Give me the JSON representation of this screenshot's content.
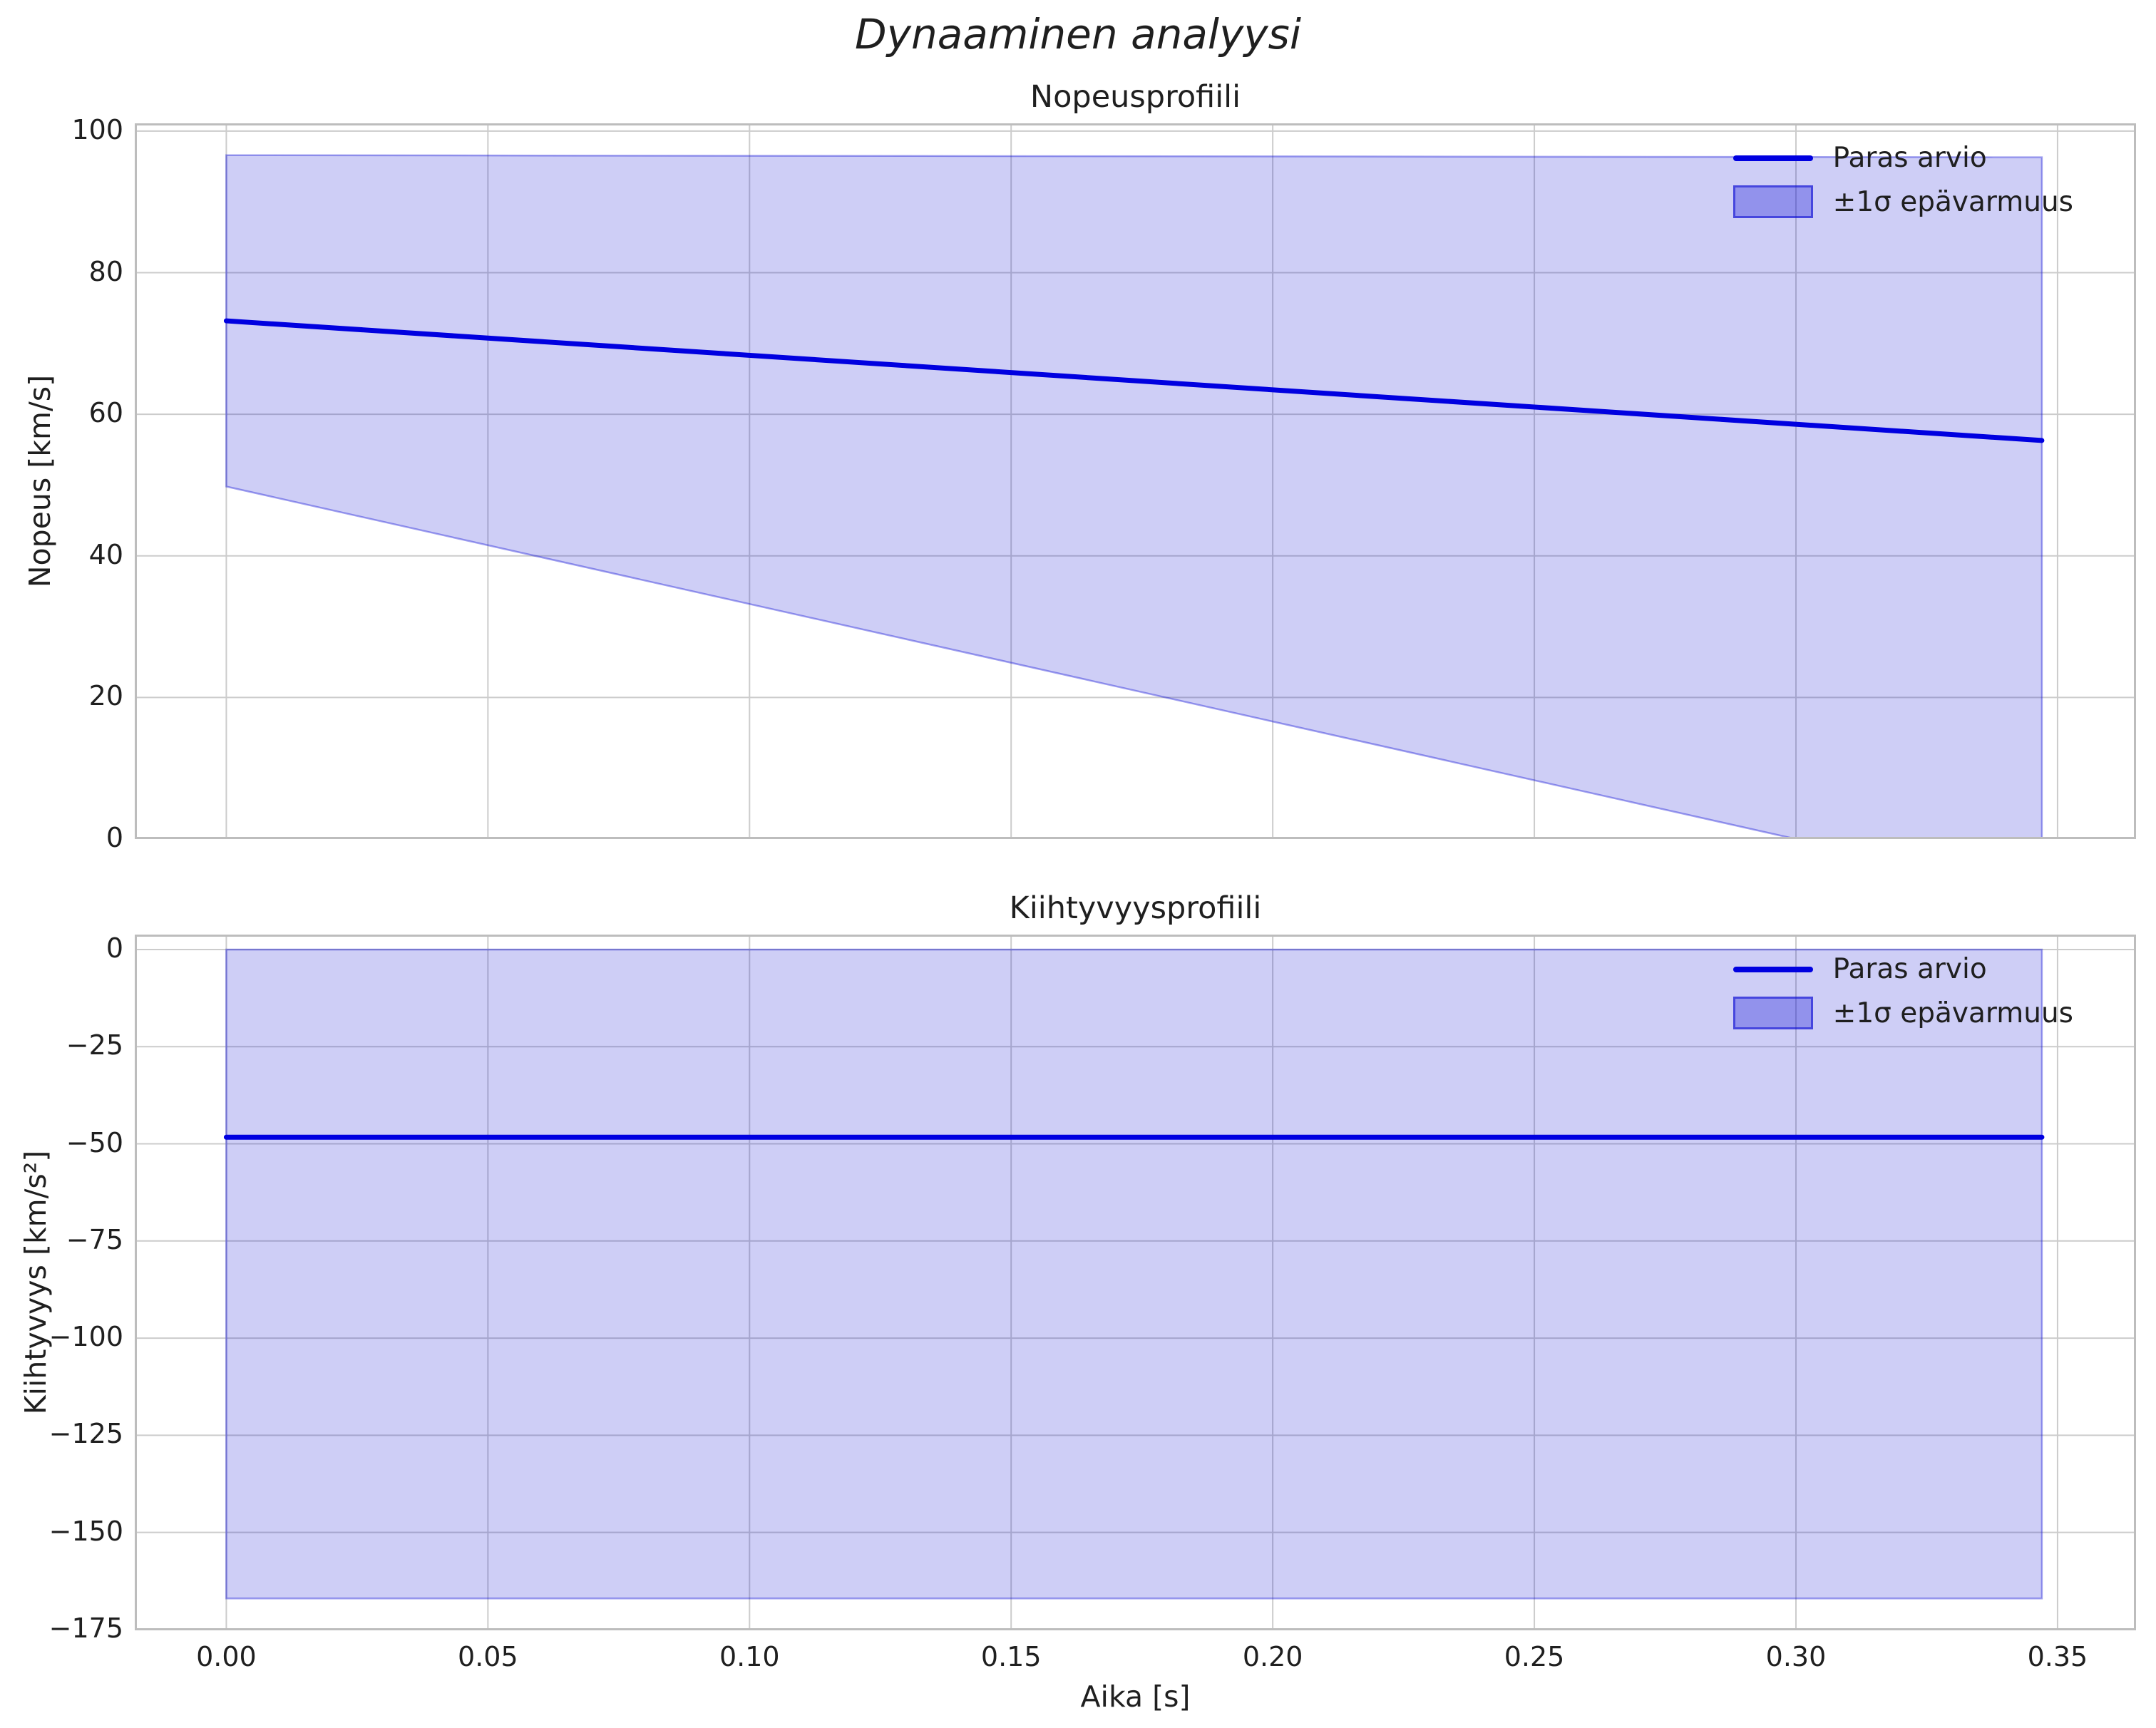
{
  "figure": {
    "title": "Dynaaminen analyysi",
    "xlabel": "Aika [s]"
  },
  "style": {
    "colors": {
      "line": "#0000e0",
      "band_fill": "rgba(8,8,212,0.20)",
      "band_edge": "rgba(8,8,212,0.38)",
      "grid": "#cccccc",
      "spine": "#bdbdbd",
      "text": "#1f1f1f"
    }
  },
  "chart_data": [
    {
      "id": "velocity",
      "type": "line",
      "title": "Nopeusprofiili",
      "ylabel": "Nopeus [km/s]",
      "xlim": [
        -0.0175,
        0.365
      ],
      "ylim": [
        0,
        101.1
      ],
      "grid": true,
      "legend_position": "upper right",
      "show_xticklabels": false,
      "xticks": [
        {
          "value": 0.0,
          "label": "0.00"
        },
        {
          "value": 0.05,
          "label": "0.05"
        },
        {
          "value": 0.1,
          "label": "0.10"
        },
        {
          "value": 0.15,
          "label": "0.15"
        },
        {
          "value": 0.2,
          "label": "0.20"
        },
        {
          "value": 0.25,
          "label": "0.25"
        },
        {
          "value": 0.3,
          "label": "0.30"
        },
        {
          "value": 0.35,
          "label": "0.35"
        }
      ],
      "yticks": [
        {
          "value": 0,
          "label": "0"
        },
        {
          "value": 20,
          "label": "20"
        },
        {
          "value": 40,
          "label": "40"
        },
        {
          "value": 60,
          "label": "60"
        },
        {
          "value": 80,
          "label": "80"
        },
        {
          "value": 100,
          "label": "100"
        }
      ],
      "line": {
        "name": "Paras arvio",
        "points": [
          [
            0,
            73.2
          ],
          [
            0.347,
            56.3
          ]
        ]
      },
      "band": {
        "name": "±1σ epävarmuus",
        "points": [
          [
            0,
            96.6
          ],
          [
            0.347,
            96.3
          ],
          [
            0.347,
            0
          ],
          [
            0.3,
            0
          ],
          [
            0,
            49.8
          ]
        ]
      },
      "legend_labels": [
        "Paras arvio",
        "±1σ epävarmuus"
      ]
    },
    {
      "id": "acceleration",
      "type": "line",
      "title": "Kiihtyvyysprofiili",
      "ylabel": "Kiihtyvyys [km/s²]",
      "xlim": [
        -0.0175,
        0.365
      ],
      "ylim": [
        -175.2,
        3.85
      ],
      "grid": true,
      "legend_position": "upper right",
      "show_xticklabels": true,
      "xticks": [
        {
          "value": 0.0,
          "label": "0.00"
        },
        {
          "value": 0.05,
          "label": "0.05"
        },
        {
          "value": 0.1,
          "label": "0.10"
        },
        {
          "value": 0.15,
          "label": "0.15"
        },
        {
          "value": 0.2,
          "label": "0.20"
        },
        {
          "value": 0.25,
          "label": "0.25"
        },
        {
          "value": 0.3,
          "label": "0.30"
        },
        {
          "value": 0.35,
          "label": "0.35"
        }
      ],
      "yticks": [
        {
          "value": 0,
          "label": "0"
        },
        {
          "value": -25,
          "label": "−25"
        },
        {
          "value": -50,
          "label": "−50"
        },
        {
          "value": -75,
          "label": "−75"
        },
        {
          "value": -100,
          "label": "−100"
        },
        {
          "value": -125,
          "label": "−125"
        },
        {
          "value": -150,
          "label": "−150"
        },
        {
          "value": -175,
          "label": "−175"
        }
      ],
      "line": {
        "name": "Paras arvio",
        "points": [
          [
            0,
            -48.3
          ],
          [
            0.347,
            -48.3
          ]
        ]
      },
      "band": {
        "name": "±1σ epävarmuus",
        "points": [
          [
            0,
            0
          ],
          [
            0.347,
            0
          ],
          [
            0.347,
            -167
          ],
          [
            0,
            -167
          ]
        ]
      },
      "legend_labels": [
        "Paras arvio",
        "±1σ epävarmuus"
      ]
    }
  ]
}
